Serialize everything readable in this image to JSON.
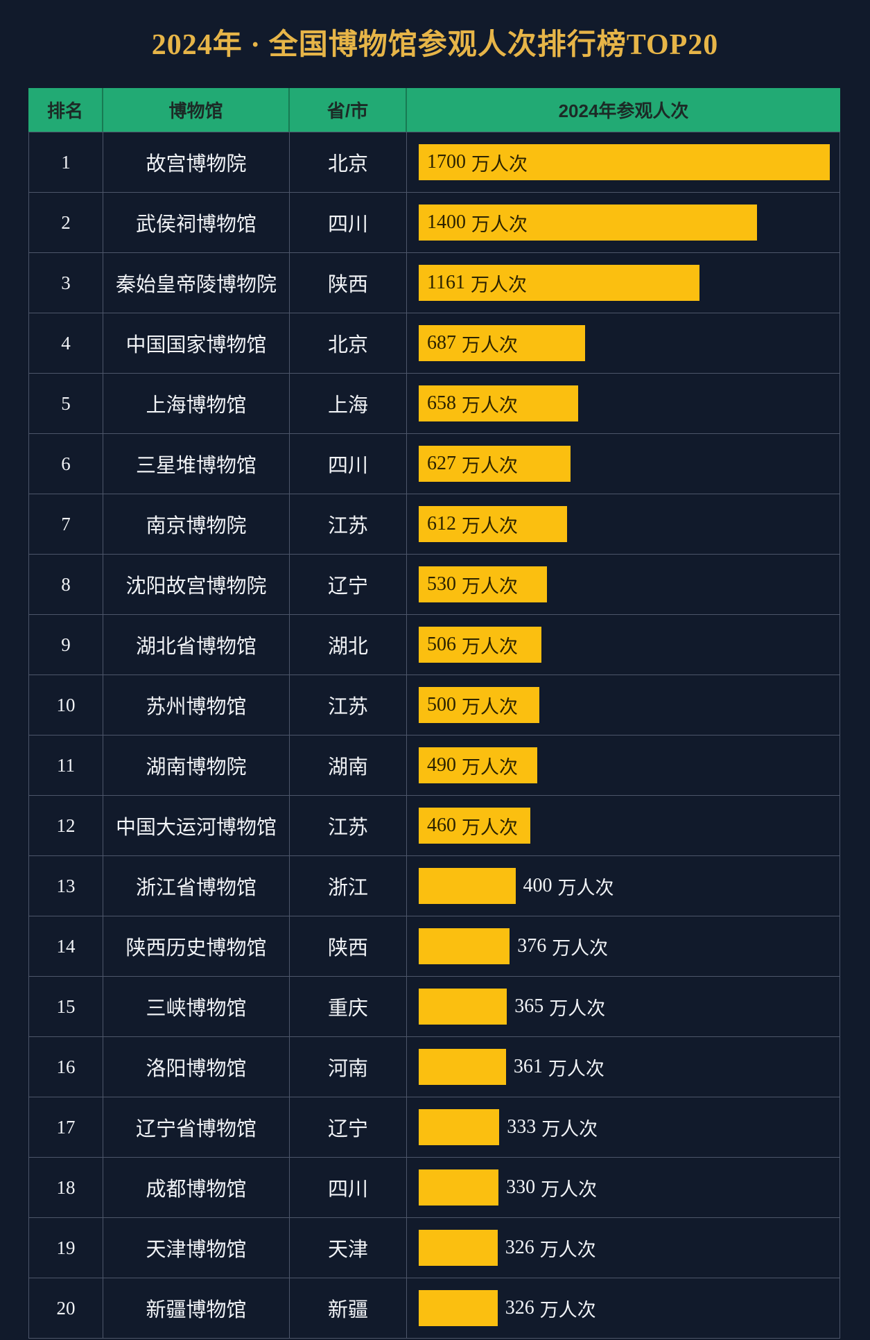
{
  "colors": {
    "background": "#111a2b",
    "header": "#22aa74",
    "bar": "#fbbf10",
    "title": "#e7b548",
    "grid": "#4d566a"
  },
  "chart_data": {
    "type": "bar",
    "orientation": "horizontal",
    "title": "2024年 · 全国博物馆参观人次排行榜TOP20",
    "columns": [
      "排名",
      "博物馆",
      "省/市",
      "2024年参观人次"
    ],
    "unit": "万人次",
    "ranks": [
      "1",
      "2",
      "3",
      "4",
      "5",
      "6",
      "7",
      "8",
      "9",
      "10",
      "11",
      "12",
      "13",
      "14",
      "15",
      "16",
      "17",
      "18",
      "19",
      "20"
    ],
    "categories": [
      "故宫博物院",
      "武侯祠博物馆",
      "秦始皇帝陵博物院",
      "中国国家博物馆",
      "上海博物馆",
      "三星堆博物馆",
      "南京博物院",
      "沈阳故宫博物院",
      "湖北省博物馆",
      "苏州博物馆",
      "湖南博物院",
      "中国大运河博物馆",
      "浙江省博物馆",
      "陕西历史博物馆",
      "三峡博物馆",
      "洛阳博物馆",
      "辽宁省博物馆",
      "成都博物馆",
      "天津博物馆",
      "新疆博物馆"
    ],
    "provinces": [
      "北京",
      "四川",
      "陕西",
      "北京",
      "上海",
      "四川",
      "江苏",
      "辽宁",
      "湖北",
      "江苏",
      "湖南",
      "江苏",
      "浙江",
      "陕西",
      "重庆",
      "河南",
      "辽宁",
      "四川",
      "天津",
      "新疆"
    ],
    "values": [
      1700,
      1400,
      1161,
      687,
      658,
      627,
      612,
      530,
      506,
      500,
      490,
      460,
      400,
      376,
      365,
      361,
      333,
      330,
      326,
      326
    ]
  }
}
